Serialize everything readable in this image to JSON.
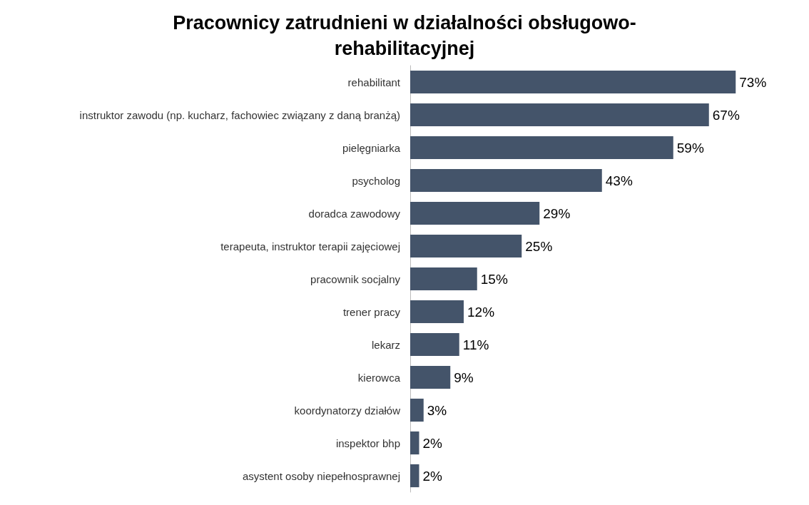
{
  "chart_data": {
    "type": "bar",
    "orientation": "horizontal",
    "title": "Pracownicy zatrudnieni w działalności obsługowo-rehabilitacyjnej",
    "categories": [
      "rehabilitant",
      "instruktor zawodu (np. kucharz, fachowiec związany z daną branżą)",
      "pielęgniarka",
      "psycholog",
      "doradca zawodowy",
      "terapeuta, instruktor terapii zajęciowej",
      "pracownik socjalny",
      "trener pracy",
      "lekarz",
      "kierowca",
      "koordynatorzy działów",
      "inspektor bhp",
      "asystent osoby niepełnosprawnej"
    ],
    "values": [
      73,
      67,
      59,
      43,
      29,
      25,
      15,
      12,
      11,
      9,
      3,
      2,
      2
    ],
    "value_labels": [
      "73%",
      "67%",
      "59%",
      "43%",
      "29%",
      "25%",
      "15%",
      "12%",
      "11%",
      "9%",
      "3%",
      "2%",
      "2%"
    ],
    "color": "#44546a",
    "tick_labels": "y"
  }
}
